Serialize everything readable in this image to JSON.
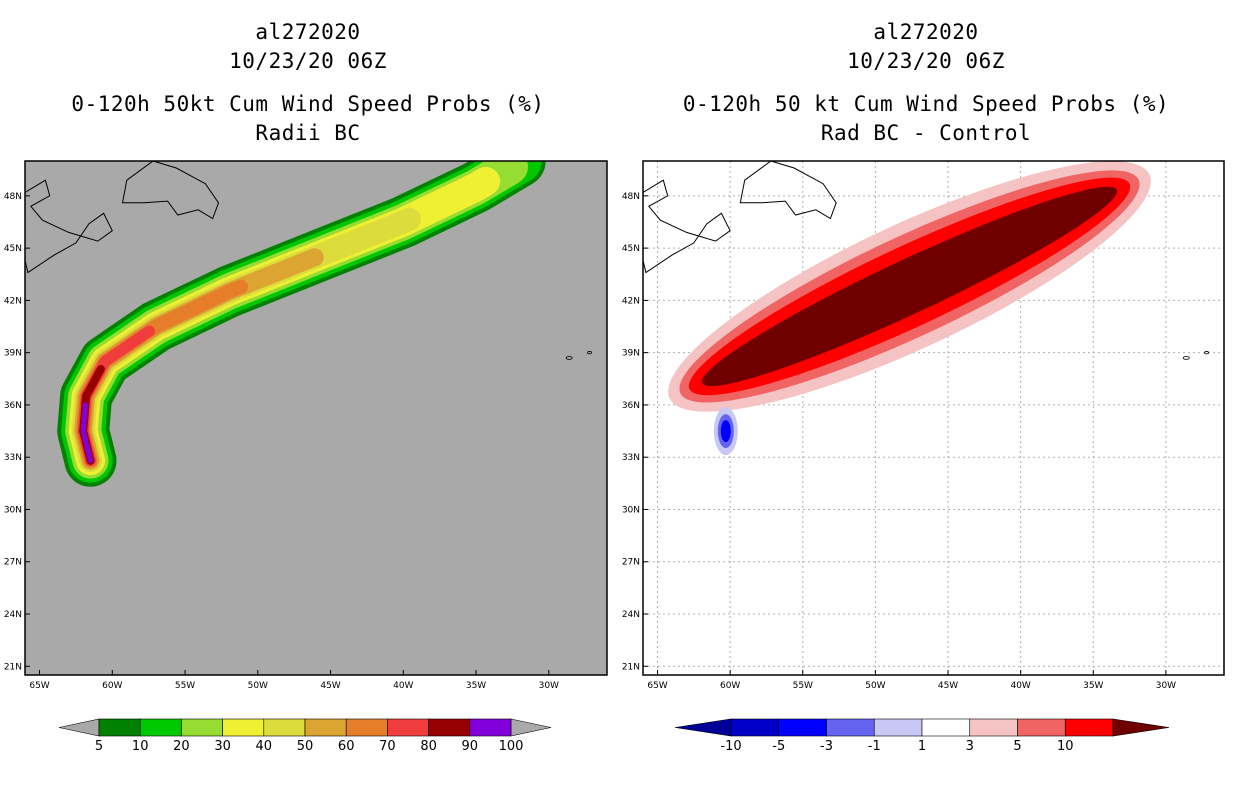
{
  "left_panel": {
    "title_lines": [
      "al272020",
      "10/23/20 06Z",
      "0-120h 50kt Cum Wind Speed Probs (%)",
      "Radii BC"
    ]
  },
  "right_panel": {
    "title_lines": [
      "al272020",
      "10/23/20 06Z",
      "0-120h 50 kt Cum Wind Speed Probs (%)",
      "Rad BC - Control"
    ]
  },
  "chart_data": [
    {
      "type": "heatmap",
      "title": "0-120h 50kt Cum Wind Speed Probs (%) - Radii BC",
      "storm": "al272020",
      "valid": "10/23/20 06Z",
      "x_ticks": [
        "65W",
        "60W",
        "55W",
        "50W",
        "45W",
        "40W",
        "35W",
        "30W"
      ],
      "x_tick_values": [
        -65,
        -60,
        -55,
        -50,
        -45,
        -40,
        -35,
        -30
      ],
      "y_ticks": [
        "21N",
        "24N",
        "27N",
        "30N",
        "33N",
        "36N",
        "39N",
        "42N",
        "45N",
        "48N"
      ],
      "y_tick_values": [
        21,
        24,
        27,
        30,
        33,
        36,
        39,
        42,
        45,
        48
      ],
      "xlim": [
        -66,
        -26
      ],
      "ylim": [
        20.5,
        50
      ],
      "grid": false,
      "background_color": "#a9a9a9",
      "track": [
        [
          -61.5,
          32.8
        ],
        [
          -62.0,
          34.5
        ],
        [
          -61.8,
          36.5
        ],
        [
          -60.5,
          38.5
        ],
        [
          -57,
          40.5
        ],
        [
          -52,
          42.5
        ],
        [
          -46,
          44.5
        ],
        [
          -40,
          46.5
        ],
        [
          -35,
          48.5
        ],
        [
          -32,
          50
        ]
      ],
      "levels": [
        5,
        10,
        20,
        30,
        40,
        50,
        60,
        70,
        80,
        90,
        100
      ],
      "colorbar_labels": [
        "5",
        "10",
        "20",
        "30",
        "40",
        "50",
        "60",
        "70",
        "80",
        "90",
        "100"
      ],
      "colorbar_colors": [
        "#008200",
        "#00c800",
        "#96dc32",
        "#f0f032",
        "#dcdc3c",
        "#dca532",
        "#e67d28",
        "#f03c3c",
        "#960000",
        "#8200dc"
      ],
      "over_color": "#a9a9a9",
      "under_color": "#a9a9a9"
    },
    {
      "type": "heatmap",
      "title": "0-120h 50 kt Cum Wind Speed Probs (%) - Rad BC - Control",
      "storm": "al272020",
      "valid": "10/23/20 06Z",
      "x_ticks": [
        "65W",
        "60W",
        "55W",
        "50W",
        "45W",
        "40W",
        "35W",
        "30W"
      ],
      "x_tick_values": [
        -65,
        -60,
        -55,
        -50,
        -45,
        -40,
        -35,
        -30
      ],
      "y_ticks": [
        "21N",
        "24N",
        "27N",
        "30N",
        "33N",
        "36N",
        "39N",
        "42N",
        "45N",
        "48N"
      ],
      "y_tick_values": [
        21,
        24,
        27,
        30,
        33,
        36,
        39,
        42,
        45,
        48
      ],
      "xlim": [
        -66,
        -26
      ],
      "ylim": [
        20.5,
        50
      ],
      "grid": true,
      "background_color": "#ffffff",
      "levels": [
        -10,
        -5,
        -3,
        -1,
        1,
        3,
        5,
        10
      ],
      "colorbar_labels": [
        "-10",
        "-5",
        "-3",
        "-1",
        "1",
        "3",
        "5",
        "10"
      ],
      "colorbar_colors": [
        "#0000c8",
        "#0000ff",
        "#6464f0",
        "#c8c8f5",
        "#ffffff",
        "#f5c3c3",
        "#f06464",
        "#ff0000"
      ],
      "under_color": "#000096",
      "over_color": "#700000",
      "negative_blob_center": [
        -60.3,
        34.5
      ]
    }
  ]
}
